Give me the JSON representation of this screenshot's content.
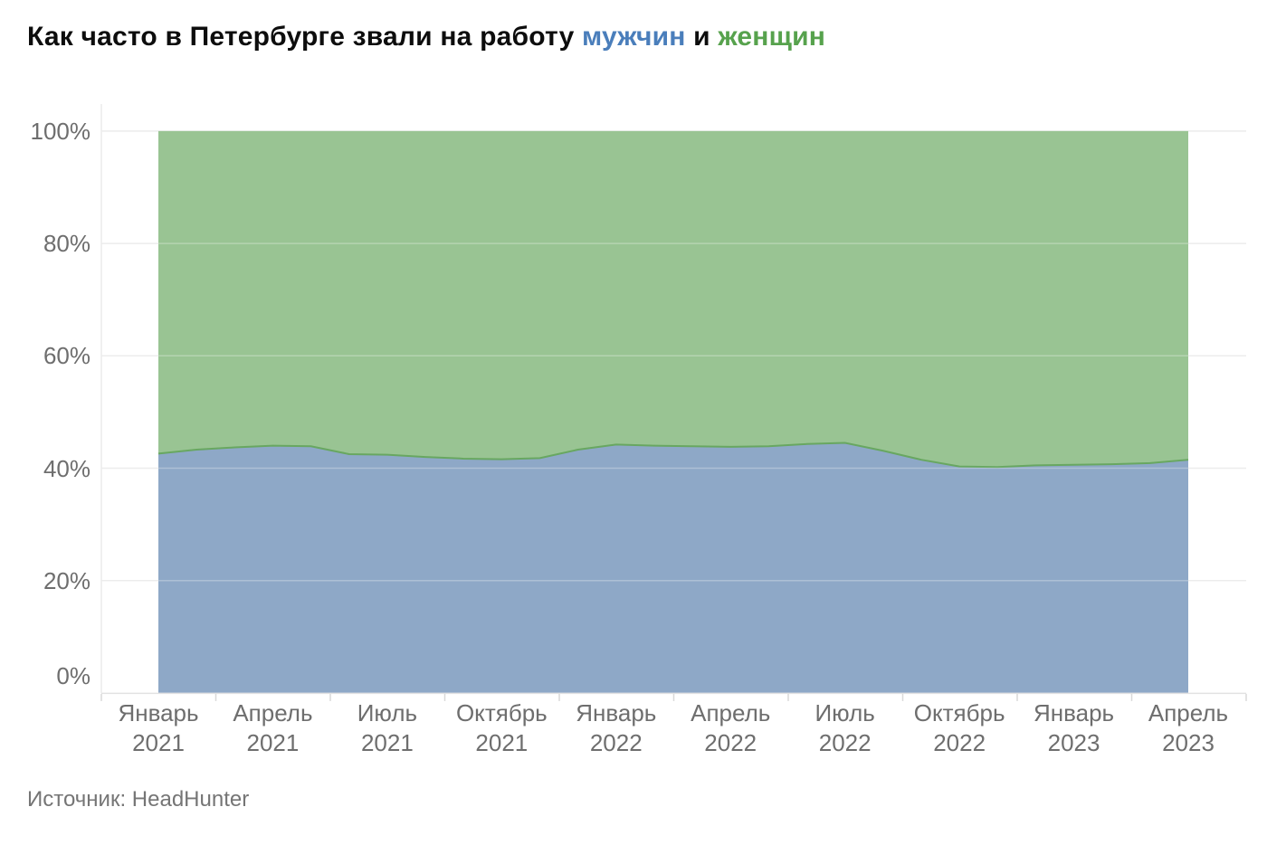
{
  "title": {
    "prefix": "Как часто в Петербурге звали на работу ",
    "men_word": "мужчин",
    "conjunction": " и ",
    "women_word": "женщин"
  },
  "source_note": "Источник: HeadHunter",
  "colors": {
    "men_area": "#8ea8c7",
    "women_area": "#99c493",
    "boundary_stroke": "#68a761",
    "men_title": "#4a7ebb",
    "women_title": "#57a24d",
    "axis_text": "#6e6e6e",
    "source_text": "#757575",
    "gridline": "#ececec",
    "grid_overlay_on_area": "rgba(255,255,255,0.28)",
    "axis_line": "#e2e2e2",
    "tick": "#d9d9d9"
  },
  "chart_data": {
    "type": "area",
    "variant": "stacked-100-percent",
    "title": "Как часто в Петербурге звали на работу мужчин и женщин",
    "x": [
      "2021-01",
      "2021-02",
      "2021-03",
      "2021-04",
      "2021-05",
      "2021-06",
      "2021-07",
      "2021-08",
      "2021-09",
      "2021-10",
      "2021-11",
      "2021-12",
      "2022-01",
      "2022-02",
      "2022-03",
      "2022-04",
      "2022-05",
      "2022-06",
      "2022-07",
      "2022-08",
      "2022-09",
      "2022-10",
      "2022-11",
      "2022-12",
      "2023-01",
      "2023-02",
      "2023-03",
      "2023-04"
    ],
    "series": [
      {
        "name": "мужчин",
        "color": "#8ea8c7",
        "values": [
          42.6,
          43.3,
          43.7,
          44.0,
          43.9,
          42.5,
          42.4,
          42.0,
          41.7,
          41.6,
          41.8,
          43.3,
          44.2,
          44.0,
          43.9,
          43.8,
          43.9,
          44.3,
          44.5,
          43.1,
          41.5,
          40.3,
          40.2,
          40.5,
          40.6,
          40.7,
          40.9,
          41.5
        ]
      },
      {
        "name": "женщин",
        "color": "#99c493",
        "values": [
          57.4,
          56.7,
          56.3,
          56.0,
          56.1,
          57.5,
          57.6,
          58.0,
          58.3,
          58.4,
          58.2,
          56.7,
          55.8,
          56.0,
          56.1,
          56.2,
          56.1,
          55.7,
          55.5,
          56.9,
          58.5,
          59.7,
          59.8,
          59.5,
          59.4,
          59.3,
          59.1,
          58.5
        ]
      }
    ],
    "x_tick_labels": [
      {
        "month": "Январь",
        "year": "2021"
      },
      {
        "month": "Апрель",
        "year": "2021"
      },
      {
        "month": "Июль",
        "year": "2021"
      },
      {
        "month": "Октябрь",
        "year": "2021"
      },
      {
        "month": "Январь",
        "year": "2022"
      },
      {
        "month": "Апрель",
        "year": "2022"
      },
      {
        "month": "Июль",
        "year": "2022"
      },
      {
        "month": "Октябрь",
        "year": "2022"
      },
      {
        "month": "Январь",
        "year": "2023"
      },
      {
        "month": "Апрель",
        "year": "2023"
      }
    ],
    "y_tick_labels": [
      "0%",
      "20%",
      "40%",
      "60%",
      "80%",
      "100%"
    ],
    "ylim": [
      0,
      100
    ],
    "grid": "horizontal",
    "legend": "inline-in-title"
  }
}
